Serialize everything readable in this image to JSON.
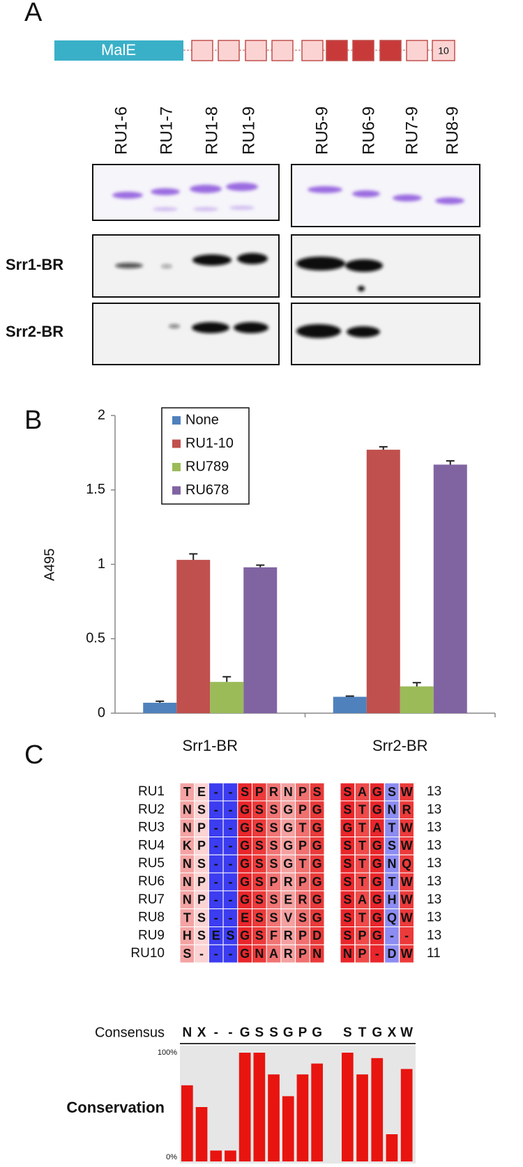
{
  "panel_a": {
    "label": "A",
    "construct": {
      "tag": "MalE",
      "repeat_end_label": "10"
    },
    "lanes": [
      "RU1-6",
      "RU1-7",
      "RU1-8",
      "RU1-9",
      "RU5-9",
      "RU6-9",
      "RU7-9",
      "RU8-9"
    ],
    "blots": [
      "Srr1-BR",
      "Srr2-BR"
    ]
  },
  "chart_data": {
    "type": "bar",
    "panel_label": "B",
    "y_label": "A495",
    "categories": [
      "Srr1-BR",
      "Srr2-BR"
    ],
    "series": [
      {
        "name": "None",
        "color": "#4f81bd",
        "values": [
          0.07,
          0.11
        ],
        "errors": [
          0.01,
          0.005
        ]
      },
      {
        "name": "RU1-10",
        "color": "#c0504d",
        "values": [
          1.03,
          1.77
        ],
        "errors": [
          0.04,
          0.02
        ]
      },
      {
        "name": "RU789",
        "color": "#9bbb59",
        "values": [
          0.21,
          0.18
        ],
        "errors": [
          0.035,
          0.025
        ]
      },
      {
        "name": "RU678",
        "color": "#8064a2",
        "values": [
          0.98,
          1.67
        ],
        "errors": [
          0.015,
          0.025
        ]
      }
    ],
    "ylim": [
      0,
      2
    ],
    "yticks": [
      0,
      0.5,
      1,
      1.5,
      2
    ],
    "legend": "upper-left"
  },
  "panel_c": {
    "label": "C",
    "column_colors": [
      "#f4a3a3",
      "#fbd3d3",
      "#3c3cf0",
      "#3c3cf0",
      "#e8262b",
      "#ec3a3a",
      "#f07474",
      "#f4a0a0",
      "#f07070",
      "#e93a3a",
      "#e8262b",
      "#ee4a4a",
      "#e8262b",
      "#8c8cf2",
      "#ec3a3a"
    ],
    "rows": [
      {
        "name": "RU1",
        "residues": [
          "T",
          "E",
          "-",
          "-",
          "S",
          "P",
          "R",
          "N",
          "P",
          "S",
          "S",
          "A",
          "G",
          "S",
          "W"
        ],
        "count": 13
      },
      {
        "name": "RU2",
        "residues": [
          "N",
          "S",
          "-",
          "-",
          "G",
          "S",
          "S",
          "G",
          "P",
          "G",
          "S",
          "T",
          "G",
          "N",
          "R"
        ],
        "count": 13
      },
      {
        "name": "RU3",
        "residues": [
          "N",
          "P",
          "-",
          "-",
          "G",
          "S",
          "S",
          "G",
          "T",
          "G",
          "G",
          "T",
          "A",
          "T",
          "W"
        ],
        "count": 13
      },
      {
        "name": "RU4",
        "residues": [
          "K",
          "P",
          "-",
          "-",
          "G",
          "S",
          "S",
          "G",
          "P",
          "G",
          "S",
          "T",
          "G",
          "S",
          "W"
        ],
        "count": 13
      },
      {
        "name": "RU5",
        "residues": [
          "N",
          "S",
          "-",
          "-",
          "G",
          "S",
          "S",
          "G",
          "T",
          "G",
          "S",
          "T",
          "G",
          "N",
          "Q"
        ],
        "count": 13
      },
      {
        "name": "RU6",
        "residues": [
          "N",
          "P",
          "-",
          "-",
          "G",
          "S",
          "P",
          "R",
          "P",
          "G",
          "S",
          "T",
          "G",
          "T",
          "W"
        ],
        "count": 13
      },
      {
        "name": "RU7",
        "residues": [
          "N",
          "P",
          "-",
          "-",
          "G",
          "S",
          "S",
          "E",
          "R",
          "G",
          "S",
          "A",
          "G",
          "H",
          "W"
        ],
        "count": 13
      },
      {
        "name": "RU8",
        "residues": [
          "T",
          "S",
          "-",
          "-",
          "E",
          "S",
          "S",
          "V",
          "S",
          "G",
          "S",
          "T",
          "G",
          "Q",
          "W"
        ],
        "count": 13
      },
      {
        "name": "RU9",
        "residues": [
          "H",
          "S",
          "E",
          "S",
          "G",
          "S",
          "F",
          "R",
          "P",
          "D",
          "S",
          "P",
          "G",
          "-",
          "-"
        ],
        "count": 13
      },
      {
        "name": "RU10",
        "residues": [
          "S",
          "-",
          "-",
          "-",
          "G",
          "N",
          "A",
          "R",
          "P",
          "N",
          "N",
          "P",
          "-",
          "D",
          "W"
        ],
        "count": 11
      }
    ],
    "consensus": {
      "label": "Consensus",
      "residues": [
        "N",
        "X",
        "-",
        "-",
        "G",
        "S",
        "S",
        "G",
        "P",
        "G",
        "S",
        "T",
        "G",
        "X",
        "W"
      ]
    },
    "conservation": {
      "label": "Conservation",
      "color": "#e8140f",
      "ticks": [
        {
          "value": 0,
          "label": "0%"
        },
        {
          "value": 100,
          "label": "100%"
        }
      ],
      "values": [
        70,
        50,
        10,
        10,
        100,
        100,
        80,
        60,
        80,
        90,
        100,
        80,
        95,
        25,
        85
      ]
    }
  }
}
